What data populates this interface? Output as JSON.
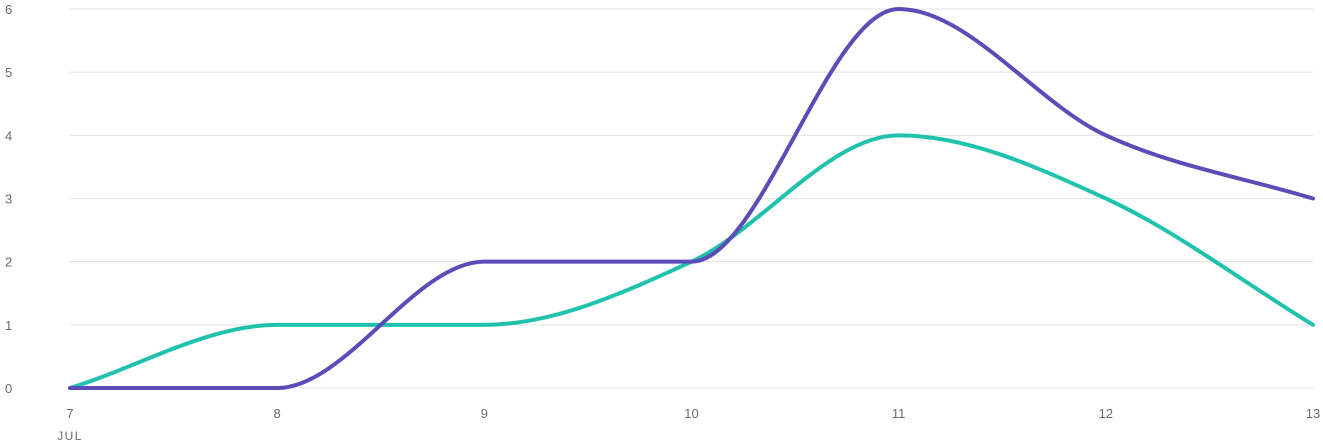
{
  "chart_data": {
    "type": "line",
    "x": [
      7,
      8,
      9,
      10,
      11,
      12,
      13
    ],
    "x_tick_labels": [
      "7",
      "8",
      "9",
      "10",
      "11",
      "12",
      "13"
    ],
    "x_sublabel": "JUL",
    "y_tick_labels": [
      "0",
      "1",
      "2",
      "3",
      "4",
      "5",
      "6"
    ],
    "ylim": [
      0,
      6
    ],
    "grid": true,
    "series": [
      {
        "color": "#1fc2ad",
        "values": [
          0,
          1,
          1,
          2,
          4,
          3,
          1
        ]
      },
      {
        "color": "#5b4cb7",
        "values": [
          0,
          0,
          2,
          2,
          6,
          4,
          3
        ]
      }
    ]
  }
}
